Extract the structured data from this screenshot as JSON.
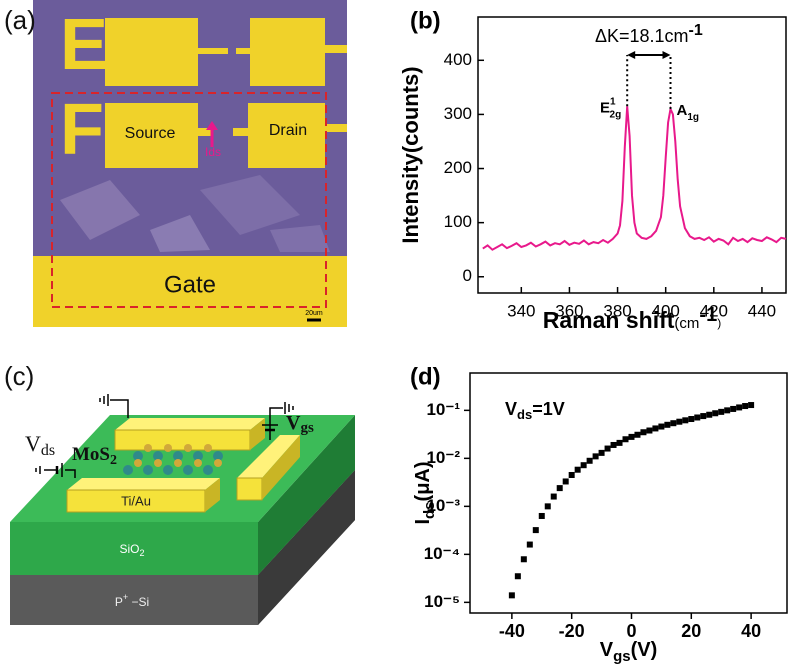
{
  "micrograph": {
    "panel_label": "(a)",
    "letters": [
      "E",
      "F"
    ],
    "source": "Source",
    "drain": "Drain",
    "current": "Ids",
    "gate": "Gate",
    "scale_bar": "20um"
  },
  "schematic": {
    "panel_label": "(c)",
    "vds": {
      "main": "V",
      "sub": "ds"
    },
    "mos2": {
      "main": "MoS",
      "sub": "2"
    },
    "vgs": {
      "main": "V",
      "sub": "gs"
    },
    "contact": "Ti/Au",
    "oxide": {
      "main": "SiO",
      "sub": "2"
    },
    "substrate": {
      "main": "P",
      "sup": "+",
      "rest": " −Si"
    }
  },
  "chart_data": [
    {
      "type": "line",
      "panel_label": "(b)",
      "x_label": {
        "main": "Raman shift",
        "unit": "(cm",
        "exp": "-1",
        "close": ")"
      },
      "y_label": "Intensity(counts)",
      "annotation": {
        "text": "ΔK=18.1cm",
        "exp": "-1"
      },
      "peak_labels": [
        {
          "main": "E",
          "sup": "1",
          "sub": "2g"
        },
        {
          "main": "A",
          "sub": "1g"
        }
      ],
      "x": [
        324,
        326,
        328,
        330,
        332,
        334,
        336,
        338,
        340,
        342,
        344,
        346,
        348,
        350,
        352,
        354,
        356,
        358,
        360,
        362,
        364,
        366,
        368,
        370,
        372,
        374,
        376,
        378,
        380,
        381,
        382,
        383,
        384,
        385,
        386,
        387,
        388,
        390,
        392,
        394,
        396,
        398,
        399,
        400,
        401,
        402,
        403,
        404,
        405,
        406,
        408,
        410,
        412,
        414,
        416,
        418,
        420,
        422,
        424,
        426,
        428,
        430,
        432,
        434,
        436,
        438,
        440,
        442,
        444,
        446,
        448,
        450
      ],
      "values": [
        52,
        58,
        50,
        55,
        60,
        53,
        57,
        62,
        55,
        58,
        63,
        56,
        60,
        65,
        58,
        62,
        60,
        66,
        59,
        63,
        61,
        67,
        60,
        64,
        62,
        68,
        63,
        70,
        80,
        95,
        140,
        240,
        315,
        260,
        150,
        100,
        80,
        72,
        70,
        75,
        85,
        110,
        150,
        220,
        285,
        310,
        300,
        250,
        180,
        130,
        90,
        75,
        70,
        72,
        68,
        73,
        65,
        70,
        67,
        60,
        72,
        66,
        70,
        64,
        71,
        68,
        66,
        73,
        69,
        64,
        72,
        70
      ],
      "color": "#e8198b",
      "xlim": [
        322,
        450
      ],
      "xticks": [
        340,
        360,
        380,
        400,
        420,
        440
      ],
      "ylim": [
        -30,
        480
      ],
      "yticks": [
        0,
        100,
        200,
        300,
        400
      ]
    },
    {
      "type": "scatter",
      "panel_label": "(d)",
      "log_y": true,
      "x_label": {
        "main": "V",
        "sub": "gs",
        "rest": "(V)"
      },
      "y_label": {
        "main": "I",
        "sub": "ds",
        "rest": "(μA)"
      },
      "annotation": {
        "main": "V",
        "sub": "ds",
        "rest": "=1V"
      },
      "x": [
        -40,
        -38,
        -36,
        -34,
        -32,
        -30,
        -28,
        -26,
        -24,
        -22,
        -20,
        -18,
        -16,
        -14,
        -12,
        -10,
        -8,
        -6,
        -4,
        -2,
        0,
        2,
        4,
        6,
        8,
        10,
        12,
        14,
        16,
        18,
        20,
        22,
        24,
        26,
        28,
        30,
        32,
        34,
        36,
        38,
        40
      ],
      "values": [
        1.4e-05,
        3.5e-05,
        7.9e-05,
        0.00016,
        0.00032,
        0.00063,
        0.001,
        0.0016,
        0.0024,
        0.0033,
        0.0045,
        0.0058,
        0.0072,
        0.0089,
        0.011,
        0.013,
        0.016,
        0.019,
        0.021,
        0.025,
        0.028,
        0.031,
        0.035,
        0.038,
        0.042,
        0.046,
        0.05,
        0.054,
        0.058,
        0.062,
        0.066,
        0.071,
        0.076,
        0.081,
        0.087,
        0.093,
        0.1,
        0.107,
        0.115,
        0.123,
        0.129
      ],
      "color": "#000000",
      "xlim": [
        -54,
        52
      ],
      "xticks": [
        -40,
        -20,
        0,
        20,
        40
      ],
      "ylim": [
        6e-06,
        0.6
      ],
      "yticks": [
        {
          "value": 1e-05,
          "label": "10⁻⁵"
        },
        {
          "value": 0.0001,
          "label": "10⁻⁴"
        },
        {
          "value": 0.001,
          "label": "10⁻³"
        },
        {
          "value": 0.01,
          "label": "10⁻²"
        },
        {
          "value": 0.1,
          "label": "10⁻¹"
        }
      ]
    }
  ]
}
